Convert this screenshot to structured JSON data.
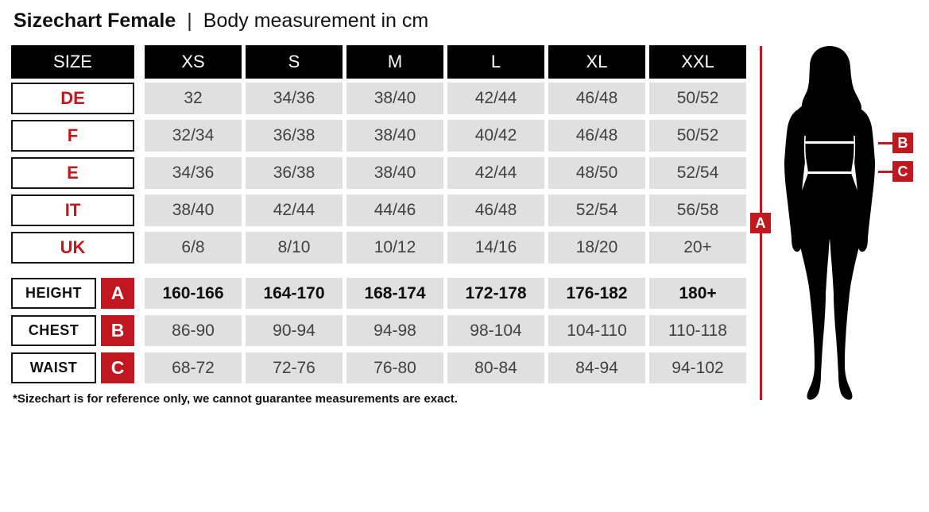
{
  "title": {
    "main": "Sizechart Female",
    "separator": "|",
    "subtitle": "Body measurement in cm"
  },
  "table": {
    "size_header": "SIZE",
    "columns": [
      "XS",
      "S",
      "M",
      "L",
      "XL",
      "XXL"
    ],
    "size_rows": [
      {
        "label": "DE",
        "values": [
          "32",
          "34/36",
          "38/40",
          "42/44",
          "46/48",
          "50/52"
        ]
      },
      {
        "label": "F",
        "values": [
          "32/34",
          "36/38",
          "38/40",
          "40/42",
          "46/48",
          "50/52"
        ]
      },
      {
        "label": "E",
        "values": [
          "34/36",
          "36/38",
          "38/40",
          "42/44",
          "48/50",
          "52/54"
        ]
      },
      {
        "label": "IT",
        "values": [
          "38/40",
          "42/44",
          "44/46",
          "46/48",
          "52/54",
          "56/58"
        ]
      },
      {
        "label": "UK",
        "values": [
          "6/8",
          "8/10",
          "10/12",
          "14/16",
          "18/20",
          "20+"
        ]
      }
    ],
    "measurement_rows": [
      {
        "label": "HEIGHT",
        "marker": "A",
        "bold": true,
        "values": [
          "160-166",
          "164-170",
          "168-174",
          "172-178",
          "176-182",
          "180+"
        ]
      },
      {
        "label": "CHEST",
        "marker": "B",
        "bold": false,
        "values": [
          "86-90",
          "90-94",
          "94-98",
          "98-104",
          "104-110",
          "110-118"
        ]
      },
      {
        "label": "WAIST",
        "marker": "C",
        "bold": false,
        "values": [
          "68-72",
          "72-76",
          "76-80",
          "80-84",
          "84-94",
          "94-102"
        ]
      }
    ]
  },
  "figure": {
    "markers": {
      "height": "A",
      "chest": "B",
      "waist": "C"
    }
  },
  "footnote": "*Sizechart is for reference only, we cannot guarantee measurements are exact.",
  "colors": {
    "accent_red": "#c0181e",
    "cell_gray": "#e0e0e0",
    "header_black": "#000000"
  }
}
